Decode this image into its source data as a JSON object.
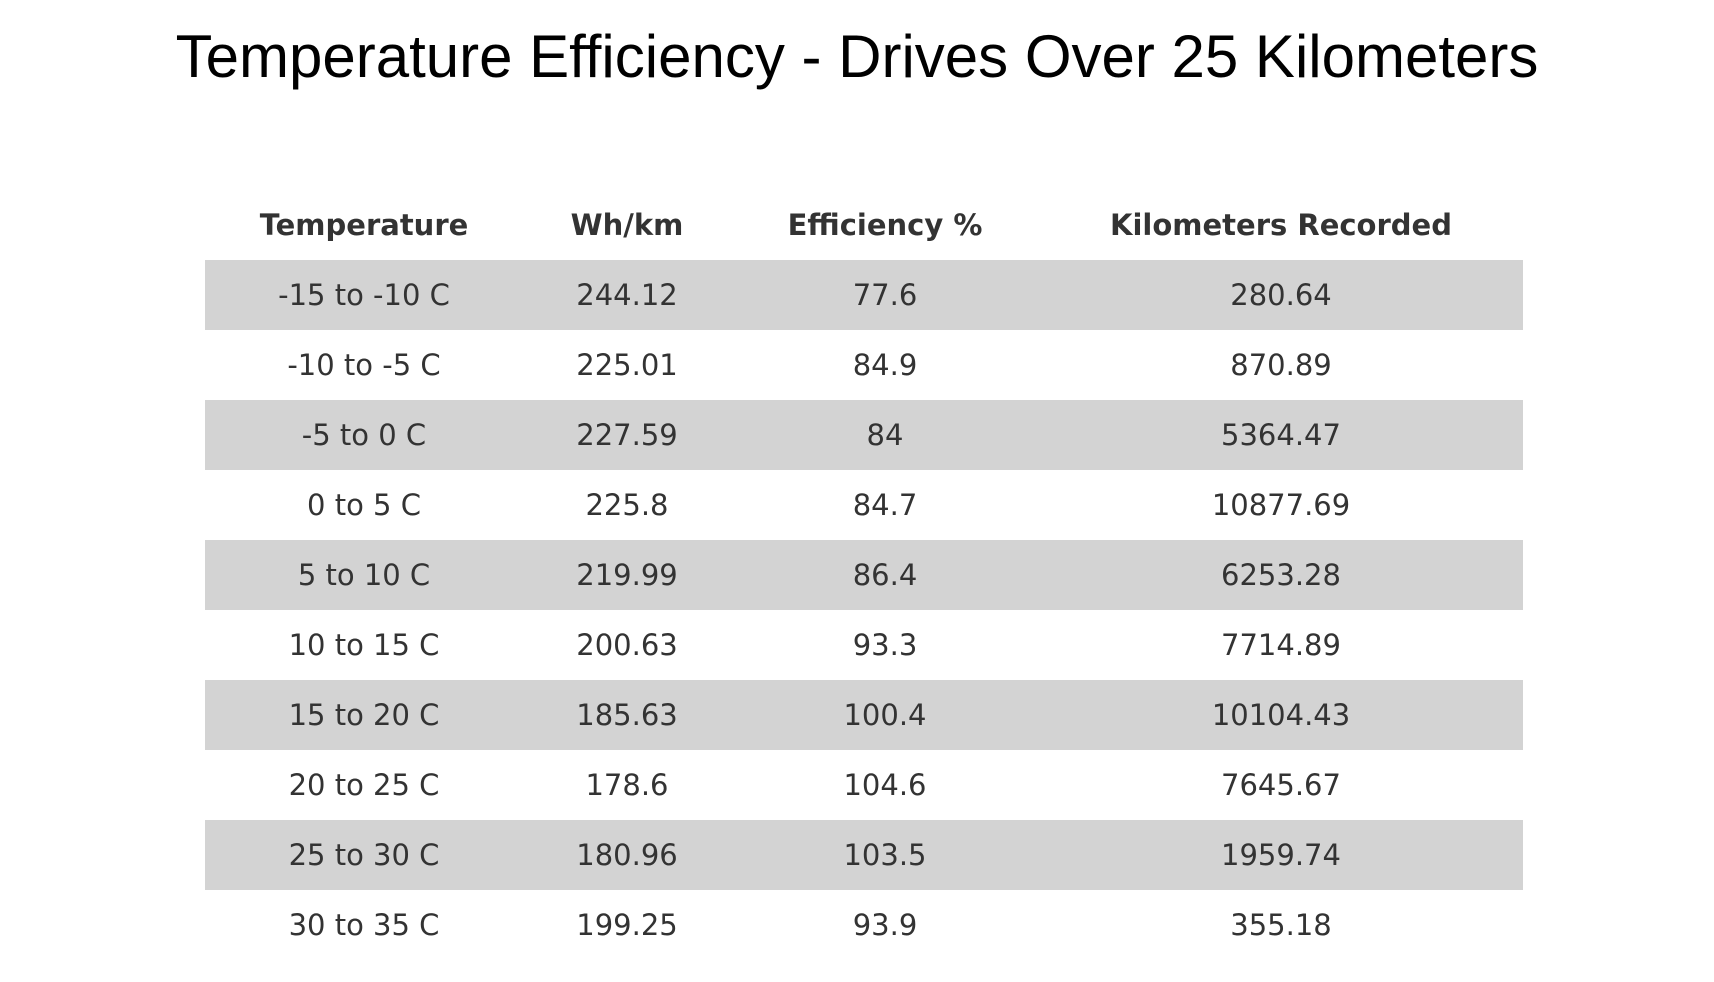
{
  "title": "Temperature Efficiency - Drives Over 25 Kilometers",
  "table": {
    "columns": [
      "Temperature",
      "Wh/km",
      "Efficiency %",
      "Kilometers Recorded"
    ],
    "rows": [
      [
        "-15 to -10 C",
        244.12,
        77.6,
        280.64
      ],
      [
        "-10 to -5 C",
        225.01,
        84.9,
        870.89
      ],
      [
        "-5 to 0 C",
        227.59,
        84,
        5364.47
      ],
      [
        "0 to 5 C",
        225.8,
        84.7,
        10877.69
      ],
      [
        "5 to 10 C",
        219.99,
        86.4,
        6253.28
      ],
      [
        "10 to 15 C",
        200.63,
        93.3,
        7714.89
      ],
      [
        "15 to 20 C",
        185.63,
        100.4,
        10104.43
      ],
      [
        "20 to 25 C",
        178.6,
        104.6,
        7645.67
      ],
      [
        "25 to 30 C",
        180.96,
        103.5,
        1959.74
      ],
      [
        "30 to 35 C",
        199.25,
        93.9,
        355.18
      ]
    ]
  }
}
